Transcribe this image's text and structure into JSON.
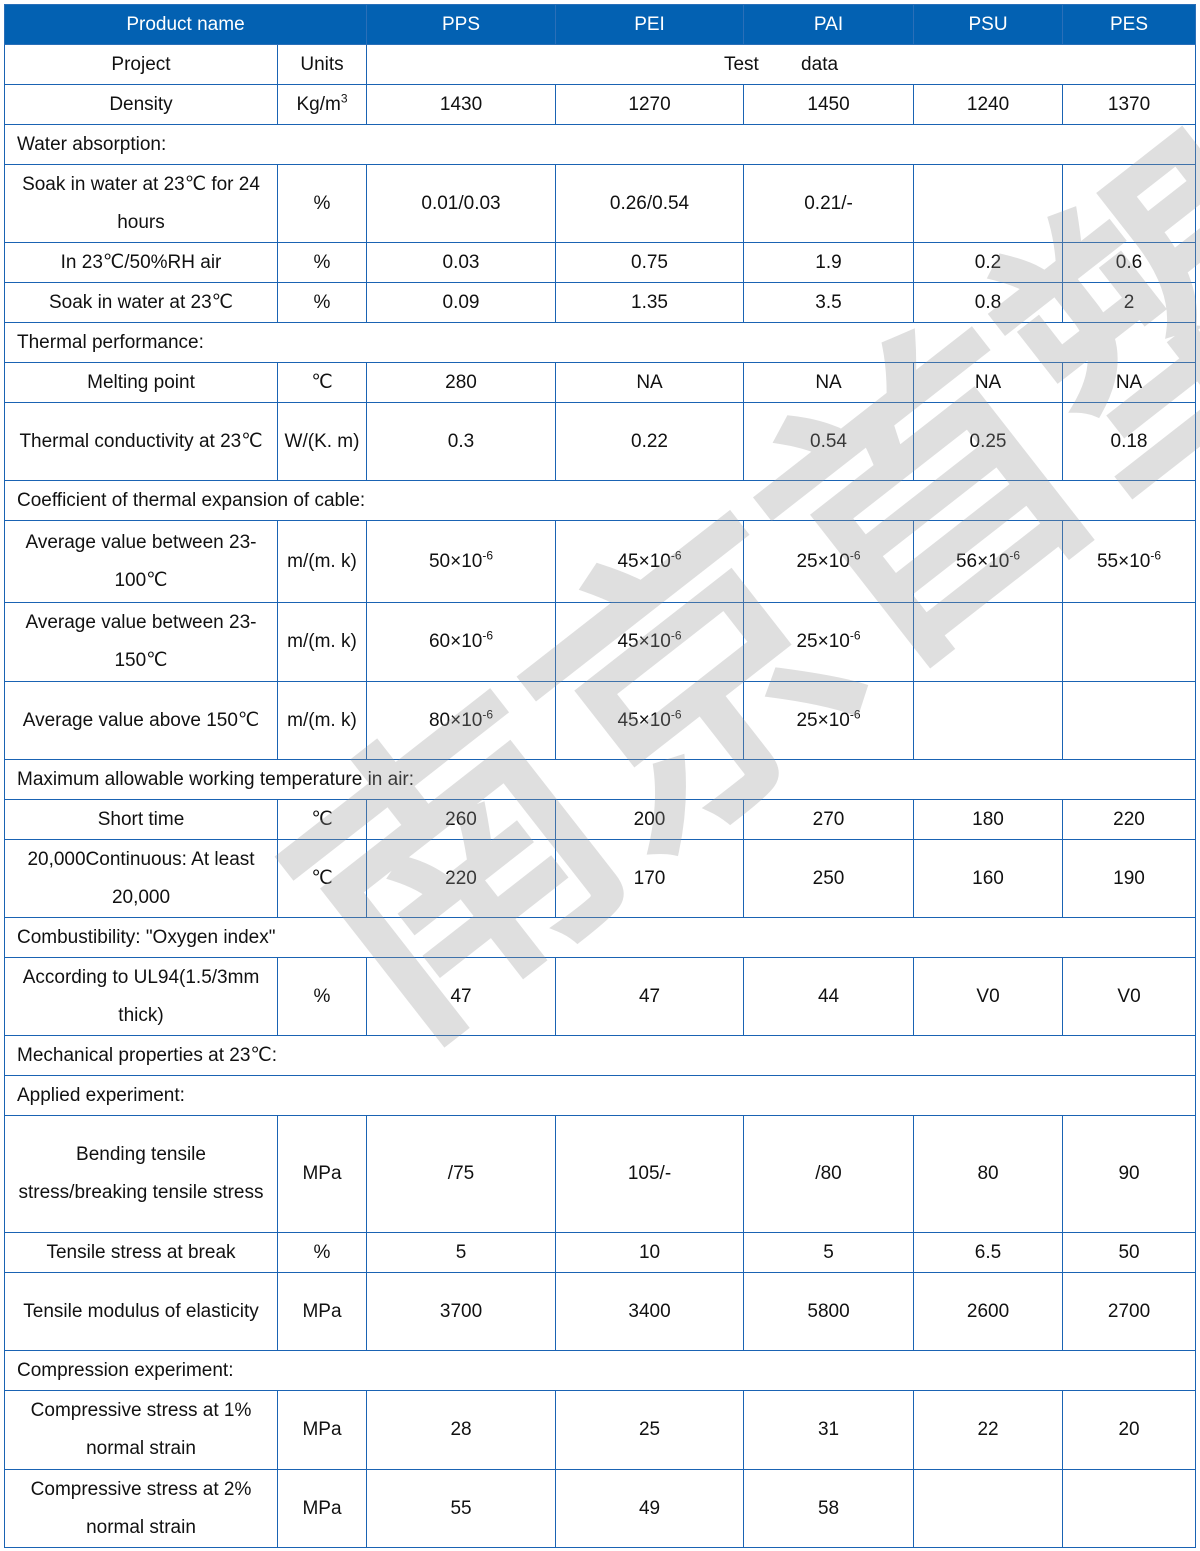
{
  "header": {
    "product_name": "Product name",
    "materials": [
      "PPS",
      "PEI",
      "PAI",
      "PSU",
      "PES"
    ]
  },
  "subheader": {
    "project": "Project",
    "units": "Units",
    "test_data": "Test        data"
  },
  "rows": [
    {
      "type": "row",
      "h": 40,
      "label": "Density",
      "unit": {
        "base": "Kg/m",
        "sup": "3"
      },
      "values": [
        "1430",
        "1270",
        "1450",
        "1240",
        "1370"
      ]
    },
    {
      "type": "section",
      "h": 40,
      "label": "Water absorption:"
    },
    {
      "type": "row",
      "h": 78,
      "label": "Soak in water at 23℃ for 24 hours",
      "unit": "%",
      "values": [
        "0.01/0.03",
        "0.26/0.54",
        "0.21/-",
        "",
        ""
      ]
    },
    {
      "type": "row",
      "h": 40,
      "label": "In 23℃/50%RH air",
      "unit": "%",
      "values": [
        "0.03",
        "0.75",
        "1.9",
        "0.2",
        "0.6"
      ]
    },
    {
      "type": "row",
      "h": 40,
      "label": "Soak in water at 23℃",
      "unit": "%",
      "values": [
        "0.09",
        "1.35",
        "3.5",
        "0.8",
        "2"
      ]
    },
    {
      "type": "section",
      "h": 40,
      "label": "Thermal performance:"
    },
    {
      "type": "row",
      "h": 40,
      "label": "Melting point",
      "unit": "℃",
      "values": [
        "280",
        "NA",
        "NA",
        "NA",
        "NA"
      ]
    },
    {
      "type": "row",
      "h": 78,
      "label": "Thermal conductivity at 23℃",
      "unit": "W/(K. m)",
      "values": [
        "0.3",
        "0.22",
        "0.54",
        "0.25",
        "0.18"
      ]
    },
    {
      "type": "section",
      "h": 40,
      "label": "Coefficient of thermal expansion of cable:"
    },
    {
      "type": "row",
      "h": 82,
      "label": "Average value between 23-100℃",
      "unit": "m/(m. k)",
      "values": [
        {
          "base": "50×10",
          "sup": "-6"
        },
        {
          "base": "45×10",
          "sup": "-6"
        },
        {
          "base": "25×10",
          "sup": "-6"
        },
        {
          "base": "56×10",
          "sup": "-6"
        },
        {
          "base": "55×10",
          "sup": "-6"
        }
      ]
    },
    {
      "type": "row",
      "h": 79,
      "label": "Average value between 23-150℃",
      "unit": "m/(m. k)",
      "values": [
        {
          "base": "60×10",
          "sup": "-6"
        },
        {
          "base": "45×10",
          "sup": "-6"
        },
        {
          "base": "25×10",
          "sup": "-6"
        },
        "",
        ""
      ]
    },
    {
      "type": "row",
      "h": 78,
      "label": "Average value above 150℃",
      "unit": "m/(m. k)",
      "values": [
        {
          "base": "80×10",
          "sup": "-6"
        },
        {
          "base": "45×10",
          "sup": "-6"
        },
        {
          "base": "25×10",
          "sup": "-6"
        },
        "",
        ""
      ]
    },
    {
      "type": "section",
      "h": 40,
      "label": "Maximum allowable working temperature in air:"
    },
    {
      "type": "row",
      "h": 40,
      "label": "Short time",
      "unit": "℃",
      "values": [
        "260",
        "200",
        "270",
        "180",
        "220"
      ]
    },
    {
      "type": "row",
      "h": 78,
      "label": "20,000Continuous: At least 20,000",
      "unit": "℃",
      "values": [
        "220",
        "170",
        "250",
        "160",
        "190"
      ]
    },
    {
      "type": "section",
      "h": 40,
      "label": "Combustibility: \"Oxygen index\""
    },
    {
      "type": "row",
      "h": 78,
      "label": "According to UL94(1.5/3mm thick)",
      "unit": "%",
      "values": [
        "47",
        "47",
        "44",
        "V0",
        "V0"
      ]
    },
    {
      "type": "section",
      "h": 40,
      "label": "Mechanical properties at 23℃:"
    },
    {
      "type": "section",
      "h": 40,
      "label": "Applied experiment:"
    },
    {
      "type": "row",
      "h": 117,
      "label": "Bending tensile stress/breaking tensile stress",
      "unit": "MPa",
      "values": [
        "/75",
        "105/-",
        "/80",
        "80",
        "90"
      ]
    },
    {
      "type": "row",
      "h": 40,
      "label": "Tensile stress at break",
      "unit": "%",
      "values": [
        "5",
        "10",
        "5",
        "6.5",
        "50"
      ]
    },
    {
      "type": "row",
      "h": 78,
      "label": "Tensile modulus of elasticity",
      "unit": "MPa",
      "values": [
        "3700",
        "3400",
        "5800",
        "2600",
        "2700"
      ]
    },
    {
      "type": "section",
      "h": 40,
      "label": "Compression experiment:"
    },
    {
      "type": "row",
      "h": 79,
      "label": "Compressive stress at 1% normal strain",
      "unit": "MPa",
      "values": [
        "28",
        "25",
        "31",
        "22",
        "20"
      ]
    },
    {
      "type": "row",
      "h": 78,
      "label": "Compressive stress at 2% normal strain",
      "unit": "MPa",
      "values": [
        "55",
        "49",
        "58",
        "",
        ""
      ]
    }
  ],
  "watermark": "南京首塑",
  "colors": {
    "header_bg": "#0361b2",
    "border": "#1a63b3"
  }
}
